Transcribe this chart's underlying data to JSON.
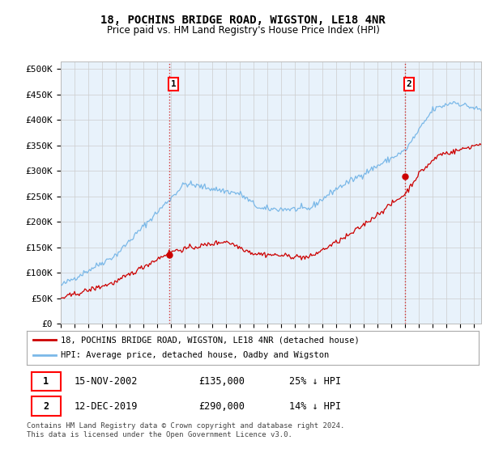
{
  "title": "18, POCHINS BRIDGE ROAD, WIGSTON, LE18 4NR",
  "subtitle": "Price paid vs. HM Land Registry's House Price Index (HPI)",
  "ylabel_ticks": [
    "£0",
    "£50K",
    "£100K",
    "£150K",
    "£200K",
    "£250K",
    "£300K",
    "£350K",
    "£400K",
    "£450K",
    "£500K"
  ],
  "ytick_values": [
    0,
    50000,
    100000,
    150000,
    200000,
    250000,
    300000,
    350000,
    400000,
    450000,
    500000
  ],
  "ylim": [
    0,
    515000
  ],
  "xlim_start": 1995.0,
  "xlim_end": 2025.5,
  "xtick_years": [
    1995,
    1996,
    1997,
    1998,
    1999,
    2000,
    2001,
    2002,
    2003,
    2004,
    2005,
    2006,
    2007,
    2008,
    2009,
    2010,
    2011,
    2012,
    2013,
    2014,
    2015,
    2016,
    2017,
    2018,
    2019,
    2020,
    2021,
    2022,
    2023,
    2024,
    2025
  ],
  "hpi_color": "#7ab8e8",
  "price_color": "#cc0000",
  "vline_color": "#cc0000",
  "chart_bg": "#e8f2fb",
  "marker1_x": 2002.88,
  "marker1_y": 135000,
  "marker2_x": 2019.95,
  "marker2_y": 290000,
  "sale1_date": "15-NOV-2002",
  "sale1_price": "£135,000",
  "sale1_hpi": "25% ↓ HPI",
  "sale2_date": "12-DEC-2019",
  "sale2_price": "£290,000",
  "sale2_hpi": "14% ↓ HPI",
  "legend_line1": "18, POCHINS BRIDGE ROAD, WIGSTON, LE18 4NR (detached house)",
  "legend_line2": "HPI: Average price, detached house, Oadby and Wigston",
  "footer1": "Contains HM Land Registry data © Crown copyright and database right 2024.",
  "footer2": "This data is licensed under the Open Government Licence v3.0.",
  "background_color": "#ffffff",
  "grid_color": "#cccccc"
}
